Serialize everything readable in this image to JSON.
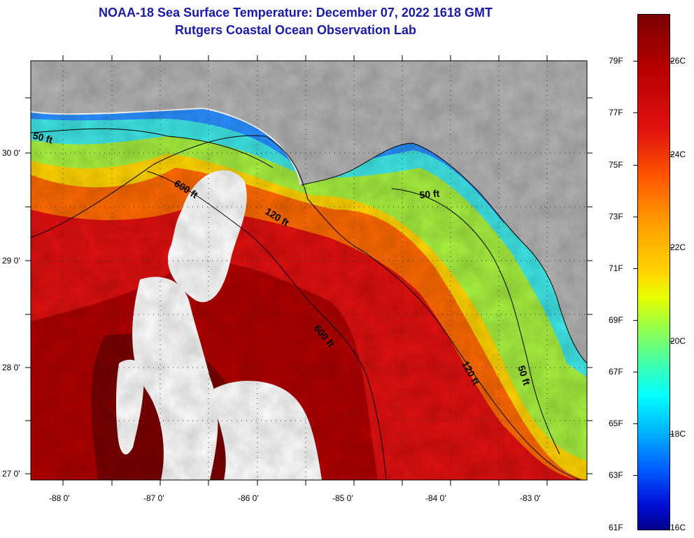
{
  "header": {
    "title": "NOAA-18 Sea Surface Temperature:  December 07, 2022 1618 GMT",
    "subtitle": "Rutgers Coastal Ocean Observation Lab"
  },
  "axes": {
    "lat_labels": [
      "30 0'",
      "29 0'",
      "28 0'",
      "27 0'"
    ],
    "lon_labels": [
      "-88 0'",
      "-87 0'",
      "-86 0'",
      "-85 0'",
      "-84 0'",
      "-83 0'"
    ]
  },
  "contours": {
    "labels": [
      "50 ft",
      "600 ft",
      "120 ft",
      "50 ft",
      "600 ft",
      "120 ft",
      "50 ft"
    ]
  },
  "colorbar": {
    "fahrenheit": [
      "79F",
      "77F",
      "75F",
      "73F",
      "71F",
      "69F",
      "67F",
      "65F",
      "63F",
      "61F"
    ],
    "celsius": [
      "26C",
      "24C",
      "22C",
      "20C",
      "18C",
      "16C"
    ]
  },
  "colors": {
    "land": "#b4b4b4",
    "cloud": "#ffffff",
    "title": "#1a1aa8"
  }
}
